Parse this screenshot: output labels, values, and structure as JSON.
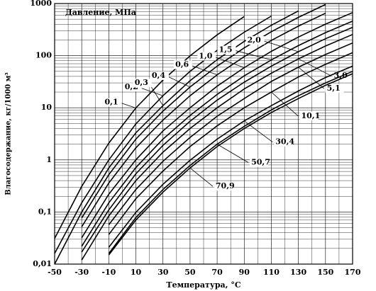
{
  "chart_data": {
    "type": "line",
    "legend_title": "Давление, МПа",
    "y_label": "Влагосодержание, кг/1000 м³",
    "x_label": "Температура, °С",
    "log_y": true,
    "grid": true,
    "minor_grid": true,
    "xlim": [
      -50,
      170
    ],
    "ylim": [
      0.01,
      1000
    ],
    "xticks": [
      -50,
      -30,
      -10,
      10,
      30,
      50,
      70,
      90,
      110,
      130,
      150,
      170
    ],
    "yticks": [
      {
        "value": 0.01,
        "label": "0,01"
      },
      {
        "value": 0.1,
        "label": "0,1"
      },
      1,
      10,
      100,
      1000
    ],
    "x": [
      -50,
      -30,
      -10,
      10,
      30,
      50,
      70,
      90,
      110,
      130,
      150,
      170
    ],
    "series": [
      {
        "name": "0,1",
        "color": "#000000",
        "values": [
          0.031,
          0.31,
          2.1,
          9.9,
          34,
          99,
          251,
          564,
          null,
          null,
          null,
          null
        ]
      },
      {
        "name": "0,2",
        "color": "#000000",
        "values": [
          0.016,
          0.15,
          1.0,
          4.9,
          17,
          50,
          126,
          282,
          575,
          null,
          null,
          null
        ]
      },
      {
        "name": "0,3",
        "color": "#000000",
        "values": [
          0.01,
          0.1,
          0.7,
          3.3,
          11,
          33,
          84,
          188,
          383,
          723,
          null,
          null
        ]
      },
      {
        "name": "0,4",
        "color": "#000000",
        "values": [
          null,
          0.077,
          0.52,
          2.5,
          8.6,
          25,
          63,
          141,
          288,
          543,
          958,
          null
        ]
      },
      {
        "name": "0,6",
        "color": "#000000",
        "values": [
          null,
          0.052,
          0.36,
          1.7,
          5.8,
          17,
          43,
          96,
          196,
          369,
          651,
          null
        ]
      },
      {
        "name": "1,0",
        "color": "#000000",
        "values": [
          null,
          0.032,
          0.22,
          1.0,
          3.6,
          10,
          26,
          59,
          121,
          228,
          402,
          669
        ]
      },
      {
        "name": "1,5",
        "color": "#000000",
        "values": [
          null,
          0.022,
          0.15,
          0.71,
          2.5,
          7.1,
          18,
          41,
          83,
          156,
          276,
          459
        ]
      },
      {
        "name": "2,0",
        "color": "#000000",
        "values": [
          null,
          0.017,
          0.11,
          0.54,
          1.9,
          5.5,
          14,
          31,
          63,
          119,
          211,
          350
        ]
      },
      {
        "name": "3,0",
        "color": "#000000",
        "values": [
          null,
          0.012,
          0.084,
          0.4,
          1.4,
          4.0,
          10,
          23,
          46,
          87,
          153,
          255
        ]
      },
      {
        "name": "5,1",
        "color": "#000000",
        "values": [
          null,
          null,
          0.057,
          0.27,
          0.94,
          2.7,
          6.9,
          15,
          32,
          60,
          105,
          175
        ]
      },
      {
        "name": "10,1",
        "color": "#000000",
        "values": [
          null,
          null,
          0.037,
          0.18,
          0.61,
          1.8,
          4.5,
          10,
          20,
          39,
          68,
          114
        ]
      },
      {
        "name": "30,4",
        "color": "#000000",
        "values": [
          null,
          null,
          0.021,
          0.098,
          0.34,
          0.98,
          2.5,
          5.6,
          11,
          21,
          38,
          63
        ]
      },
      {
        "name": "50,7",
        "color": "#000000",
        "values": [
          null,
          null,
          0.016,
          0.078,
          0.27,
          0.78,
          2.0,
          4.4,
          9.1,
          17,
          30,
          50
        ]
      },
      {
        "name": "70,9",
        "color": "#000000",
        "values": [
          null,
          null,
          0.015,
          0.07,
          0.24,
          0.7,
          1.8,
          4.0,
          8.1,
          15,
          27,
          45
        ]
      }
    ]
  }
}
